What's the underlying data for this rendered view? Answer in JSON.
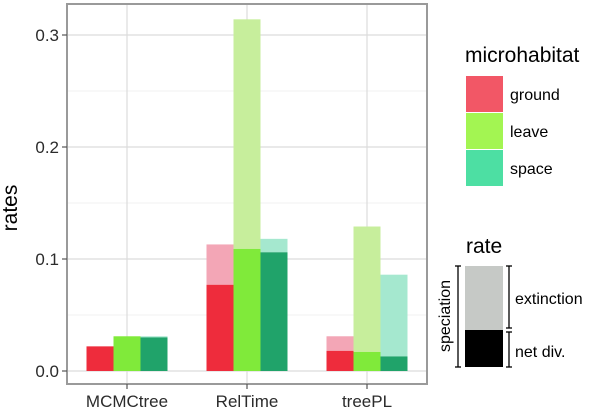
{
  "chart_data": {
    "type": "bar",
    "ylabel": "rates",
    "xlabel": "",
    "ylim": [
      0,
      0.33
    ],
    "yticks": [
      "0.0",
      "0.1",
      "0.2",
      "0.3"
    ],
    "categories": [
      "MCMCtree",
      "RelTime",
      "treePL"
    ],
    "series": [
      {
        "name": "ground",
        "color": "#ee2c3c",
        "light_color": "#f3a6b6",
        "net_div": [
          0.022,
          0.077,
          0.018
        ],
        "speciation": [
          0.022,
          0.113,
          0.031
        ]
      },
      {
        "name": "leave",
        "color": "#80ea3a",
        "light_color": "#c7ee9c",
        "net_div": [
          0.031,
          0.109,
          0.017
        ],
        "speciation": [
          0.031,
          0.314,
          0.129
        ]
      },
      {
        "name": "space",
        "color": "#20a36a",
        "light_color": "#a5e8cf",
        "net_div": [
          0.03,
          0.106,
          0.013
        ],
        "speciation": [
          0.031,
          0.118,
          0.086
        ]
      }
    ],
    "grid": true,
    "legend": {
      "position": "right",
      "microhabitat_title": "microhabitat",
      "microhabitat_items": [
        {
          "label": "ground",
          "color": "#f25766"
        },
        {
          "label": "leave",
          "color": "#a3f552"
        },
        {
          "label": "space",
          "color": "#4ddfa3"
        }
      ],
      "rate_title": "rate",
      "rate_labels": {
        "speciation": "speciation",
        "extinction": "extinction",
        "net_div": "net div."
      },
      "rate_colors": {
        "extinction": "#c6c9c6",
        "net_div": "#000000"
      }
    }
  }
}
